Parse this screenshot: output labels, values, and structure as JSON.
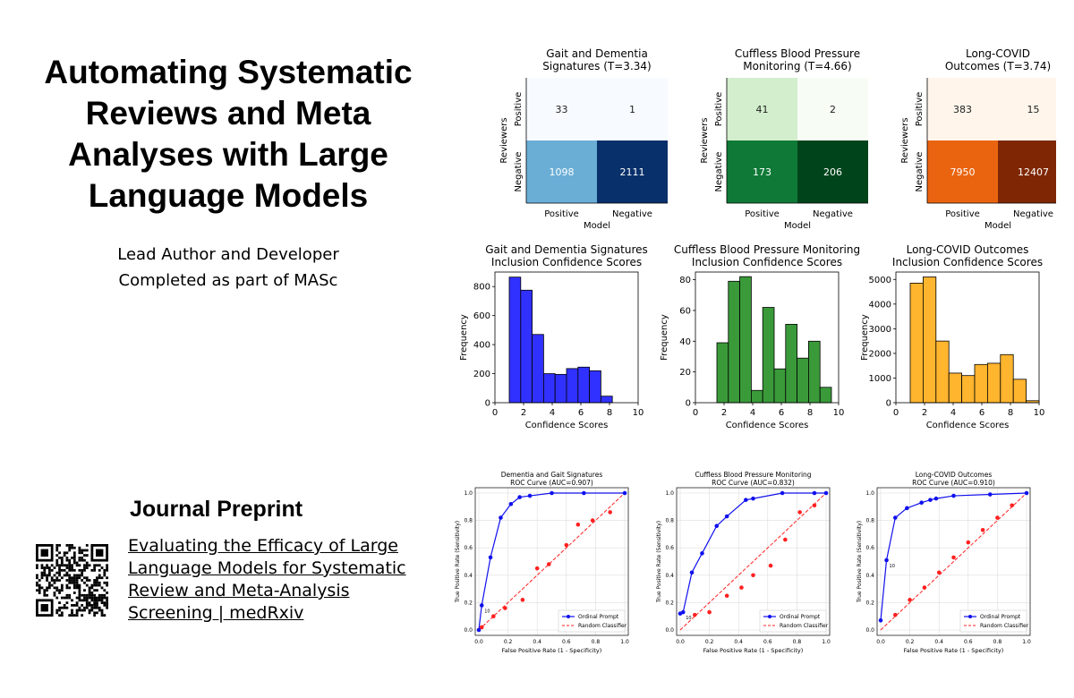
{
  "title_lines": [
    "Automating Systematic",
    "Reviews and Meta",
    "Analyses with Large",
    "Language Models"
  ],
  "role_line1": "Lead Author and Developer",
  "role_line2": "Completed as part of MASc",
  "preprint": {
    "heading": "Journal Preprint",
    "link_text": "Evaluating the Efficacy of Large Language Models for Systematic Review and Meta-Analysis Screening | medRxiv"
  },
  "confusion": [
    {
      "title": [
        "Gait and Dementia",
        "Signatures (T=3.34)"
      ],
      "cells": [
        [
          33,
          1
        ],
        [
          1098,
          2111
        ]
      ],
      "colors": [
        [
          "#f7fbff",
          "#f7fbff"
        ],
        [
          "#6aaed6",
          "#08306b"
        ]
      ],
      "text_dark": [
        [
          true,
          true
        ],
        [
          false,
          false
        ]
      ]
    },
    {
      "title": [
        "Cuffless Blood Pressure",
        "Monitoring (T=4.66)"
      ],
      "cells": [
        [
          41,
          2
        ],
        [
          173,
          206
        ]
      ],
      "colors": [
        [
          "#d3eecd",
          "#f7fcf5"
        ],
        [
          "#0f7a37",
          "#00441b"
        ]
      ],
      "text_dark": [
        [
          true,
          true
        ],
        [
          false,
          false
        ]
      ]
    },
    {
      "title": [
        "Long-COVID",
        "Outcomes (T=3.74)"
      ],
      "cells": [
        [
          383,
          15
        ],
        [
          7950,
          12407
        ]
      ],
      "colors": [
        [
          "#fff5eb",
          "#fff5eb"
        ],
        [
          "#ea6410",
          "#7f2704"
        ]
      ],
      "text_dark": [
        [
          true,
          true
        ],
        [
          false,
          false
        ]
      ]
    }
  ],
  "confusion_labels": {
    "xlabel": "Model",
    "ylabel": "Reviewers",
    "ticks": [
      "Positive",
      "Negative"
    ]
  },
  "histograms": [
    {
      "title": [
        "Gait and Dementia Signatures",
        "Inclusion Confidence Scores"
      ],
      "color": "#3131ff",
      "ylim": [
        0,
        900
      ],
      "yticks": [
        0,
        200,
        400,
        600,
        800
      ],
      "bins": [
        [
          1,
          1.8
        ],
        [
          1.8,
          2.6
        ],
        [
          2.6,
          3.4
        ],
        [
          3.4,
          4.2
        ],
        [
          4.2,
          5
        ],
        [
          5,
          5.8
        ],
        [
          5.8,
          6.6
        ],
        [
          6.6,
          7.4
        ],
        [
          7.4,
          8.2
        ],
        [
          8.2,
          9
        ]
      ],
      "values": [
        865,
        775,
        470,
        200,
        195,
        235,
        245,
        220,
        45,
        0
      ]
    },
    {
      "title": [
        "Cuffless Blood Pressure Monitoring",
        "Inclusion Confidence Scores"
      ],
      "color": "#3a9a3a",
      "ylim": [
        0,
        85
      ],
      "yticks": [
        0,
        20,
        40,
        60,
        80
      ],
      "bins": [
        [
          1.5,
          2.3
        ],
        [
          2.3,
          3.1
        ],
        [
          3.1,
          3.9
        ],
        [
          3.9,
          4.7
        ],
        [
          4.7,
          5.5
        ],
        [
          5.5,
          6.3
        ],
        [
          6.3,
          7.1
        ],
        [
          7.1,
          7.9
        ],
        [
          7.9,
          8.7
        ],
        [
          8.7,
          9.5
        ]
      ],
      "values": [
        39,
        79,
        82,
        8,
        62,
        22,
        51,
        29,
        40,
        10
      ]
    },
    {
      "title": [
        "Long-COVID Outcomes",
        "Inclusion Confidence Scores"
      ],
      "color": "#ffb52e",
      "ylim": [
        0,
        5300
      ],
      "yticks": [
        0,
        1000,
        2000,
        3000,
        4000,
        5000
      ],
      "bins": [
        [
          1,
          1.9
        ],
        [
          1.9,
          2.8
        ],
        [
          2.8,
          3.7
        ],
        [
          3.7,
          4.6
        ],
        [
          4.6,
          5.5
        ],
        [
          5.5,
          6.4
        ],
        [
          6.4,
          7.3
        ],
        [
          7.3,
          8.2
        ],
        [
          8.2,
          9.1
        ],
        [
          9.1,
          10
        ]
      ],
      "values": [
        4850,
        5100,
        2500,
        1200,
        1100,
        1550,
        1600,
        1950,
        950,
        80
      ]
    }
  ],
  "hist_labels": {
    "xlabel": "Confidence Scores",
    "ylabel": "Frequency",
    "xticks": [
      0,
      2,
      4,
      6,
      8,
      10
    ]
  },
  "chart_data": [
    {
      "type": "line",
      "title": "Dementia and Gait Signatures ROC Curve (AUC=0.907)",
      "xlabel": "False Positive Rate (1 - Specificity)",
      "ylabel": "True Positive Rate (Sensitivity)",
      "xlim": [
        0,
        1
      ],
      "ylim": [
        0,
        1
      ],
      "grid": true,
      "legend": "bottom-right",
      "series": [
        {
          "name": "Ordinal Prompt",
          "x": [
            0,
            0.02,
            0.08,
            0.15,
            0.22,
            0.28,
            0.35,
            0.5,
            0.72,
            1.0
          ],
          "y": [
            0,
            0.18,
            0.53,
            0.82,
            0.92,
            0.97,
            0.98,
            1.0,
            1.0,
            1.0
          ]
        },
        {
          "name": "Random Classifier",
          "x": [
            0,
            1
          ],
          "y": [
            0,
            1
          ]
        }
      ],
      "threshold_labels": [
        "10",
        "9",
        "8",
        "7",
        "6",
        "5",
        "4",
        "3",
        "2",
        "1"
      ],
      "ref_points": {
        "x": [
          0.02,
          0.1,
          0.18,
          0.3,
          0.4,
          0.48,
          0.6,
          0.68,
          0.78,
          0.9
        ],
        "y": [
          0.02,
          0.1,
          0.16,
          0.22,
          0.45,
          0.48,
          0.62,
          0.77,
          0.8,
          0.86
        ]
      }
    },
    {
      "type": "line",
      "title": "Cuffless Blood Pressure Monitoring ROC Curve (AUC=0.832)",
      "xlabel": "False Positive Rate (1 - Specificity)",
      "ylabel": "True Positive Rate (Sensitivity)",
      "xlim": [
        0,
        1
      ],
      "ylim": [
        0,
        1
      ],
      "grid": true,
      "legend": "bottom-right",
      "series": [
        {
          "name": "Ordinal Prompt",
          "x": [
            0,
            0.02,
            0.08,
            0.15,
            0.25,
            0.32,
            0.45,
            0.5,
            0.7,
            0.92,
            1.0
          ],
          "y": [
            0.12,
            0.13,
            0.42,
            0.56,
            0.76,
            0.83,
            0.95,
            0.96,
            1.0,
            1.0,
            1.0
          ]
        },
        {
          "name": "Random Classifier",
          "x": [
            0,
            1
          ],
          "y": [
            0,
            1
          ]
        }
      ],
      "threshold_labels": [
        "10",
        "9",
        "8",
        "7",
        "6",
        "5",
        "4",
        "3",
        "2",
        "1"
      ],
      "ref_points": {
        "x": [
          0.1,
          0.2,
          0.32,
          0.42,
          0.5,
          0.62,
          0.72,
          0.82,
          0.92
        ],
        "y": [
          0.11,
          0.13,
          0.25,
          0.31,
          0.4,
          0.47,
          0.66,
          0.86,
          0.91
        ]
      }
    },
    {
      "type": "line",
      "title": "Long-COVID Outcomes ROC Curve (AUC=0.910)",
      "xlabel": "False Positive Rate (1 - Specificity)",
      "ylabel": "True Positive Rate (Sensitivity)",
      "xlim": [
        0,
        1
      ],
      "ylim": [
        0,
        1
      ],
      "grid": true,
      "legend": "bottom-right",
      "series": [
        {
          "name": "Ordinal Prompt",
          "x": [
            0,
            0.04,
            0.1,
            0.18,
            0.28,
            0.34,
            0.38,
            0.5,
            0.75,
            1.0
          ],
          "y": [
            0.07,
            0.51,
            0.82,
            0.89,
            0.93,
            0.95,
            0.96,
            0.98,
            0.99,
            1.0
          ]
        },
        {
          "name": "Random Classifier",
          "x": [
            0,
            1
          ],
          "y": [
            0,
            1
          ]
        }
      ],
      "threshold_labels": [
        "10",
        "9",
        "8",
        "7",
        "6",
        "5",
        "4",
        "3",
        "2",
        "1"
      ],
      "ref_points": {
        "x": [
          0.1,
          0.2,
          0.3,
          0.4,
          0.5,
          0.6,
          0.7,
          0.8,
          0.9
        ],
        "y": [
          0.11,
          0.22,
          0.31,
          0.42,
          0.53,
          0.64,
          0.73,
          0.82,
          0.91
        ]
      }
    }
  ]
}
